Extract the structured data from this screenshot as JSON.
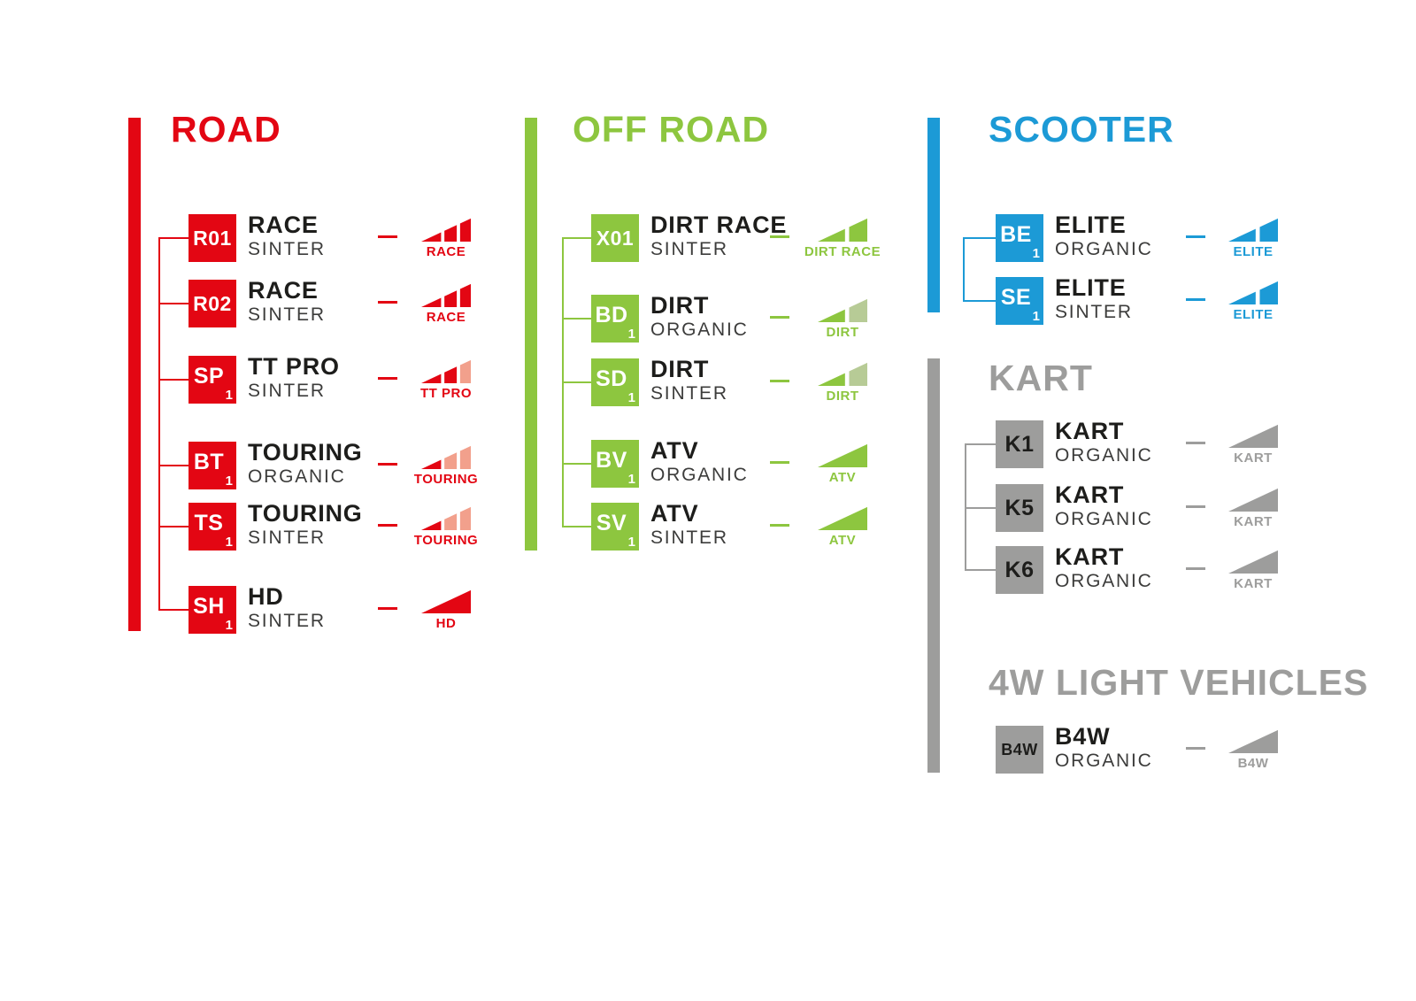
{
  "palette": {
    "road_red": "#E30613",
    "road_salmon": "#F2A08C",
    "offroad_green": "#8DC63F",
    "offroad_sage": "#B7CB96",
    "scooter_blue": "#1C9AD6",
    "neutral_gray": "#9D9D9C",
    "text_dark": "#1D1D1B"
  },
  "sections": [
    {
      "id": "road",
      "title": "ROAD",
      "accent": "#E30613",
      "box_bg": "#E30613",
      "box_text": "#FFFFFF",
      "items": [
        {
          "code": "R01",
          "sub": "",
          "name": "RACE",
          "compound": "SINTER",
          "icon": {
            "type": "bars3",
            "label": "RACE",
            "colors": [
              "#E30613",
              "#E30613",
              "#E30613"
            ]
          }
        },
        {
          "code": "R02",
          "sub": "",
          "name": "RACE",
          "compound": "SINTER",
          "icon": {
            "type": "bars3",
            "label": "RACE",
            "colors": [
              "#E30613",
              "#E30613",
              "#E30613"
            ]
          }
        },
        {
          "code": "SP",
          "sub": "1",
          "name": "TT PRO",
          "compound": "SINTER",
          "icon": {
            "type": "bars3",
            "label": "TT PRO",
            "colors": [
              "#E30613",
              "#E30613",
              "#F2A08C"
            ]
          }
        },
        {
          "code": "BT",
          "sub": "1",
          "name": "TOURING",
          "compound": "ORGANIC",
          "icon": {
            "type": "bars3",
            "label": "TOURING",
            "colors": [
              "#E30613",
              "#F2A08C",
              "#F2A08C"
            ]
          }
        },
        {
          "code": "TS",
          "sub": "1",
          "name": "TOURING",
          "compound": "SINTER",
          "icon": {
            "type": "bars3",
            "label": "TOURING",
            "colors": [
              "#E30613",
              "#F2A08C",
              "#F2A08C"
            ]
          }
        },
        {
          "code": "SH",
          "sub": "1",
          "name": "HD",
          "compound": "SINTER",
          "icon": {
            "type": "ramp",
            "label": "HD",
            "colors": [
              "#E30613"
            ]
          }
        }
      ]
    },
    {
      "id": "off-road",
      "title": "OFF ROAD",
      "accent": "#8DC63F",
      "box_bg": "#8DC63F",
      "box_text": "#FFFFFF",
      "items": [
        {
          "code": "X01",
          "sub": "",
          "name": "DIRT RACE",
          "compound": "SINTER",
          "icon": {
            "type": "bars2",
            "label": "DIRT RACE",
            "colors": [
              "#8DC63F",
              "#8DC63F"
            ]
          }
        },
        {
          "code": "BD",
          "sub": "1",
          "name": "DIRT",
          "compound": "ORGANIC",
          "icon": {
            "type": "bars2",
            "label": "DIRT",
            "colors": [
              "#8DC63F",
              "#B7CB96"
            ]
          }
        },
        {
          "code": "SD",
          "sub": "1",
          "name": "DIRT",
          "compound": "SINTER",
          "icon": {
            "type": "bars2",
            "label": "DIRT",
            "colors": [
              "#8DC63F",
              "#B7CB96"
            ]
          }
        },
        {
          "code": "BV",
          "sub": "1",
          "name": "ATV",
          "compound": "ORGANIC",
          "icon": {
            "type": "ramp",
            "label": "ATV",
            "colors": [
              "#8DC63F"
            ]
          }
        },
        {
          "code": "SV",
          "sub": "1",
          "name": "ATV",
          "compound": "SINTER",
          "icon": {
            "type": "ramp",
            "label": "ATV",
            "colors": [
              "#8DC63F"
            ]
          }
        }
      ]
    },
    {
      "id": "scooter",
      "title": "SCOOTER",
      "accent": "#1C9AD6",
      "box_bg": "#1C9AD6",
      "box_text": "#FFFFFF",
      "items": [
        {
          "code": "BE",
          "sub": "1",
          "name": "ELITE",
          "compound": "ORGANIC",
          "icon": {
            "type": "bars2",
            "label": "ELITE",
            "colors": [
              "#1C9AD6",
              "#1C9AD6"
            ]
          }
        },
        {
          "code": "SE",
          "sub": "1",
          "name": "ELITE",
          "compound": "SINTER",
          "icon": {
            "type": "bars2",
            "label": "ELITE",
            "colors": [
              "#1C9AD6",
              "#1C9AD6"
            ]
          }
        }
      ]
    },
    {
      "id": "kart",
      "title": "KART",
      "accent": "#9D9D9C",
      "box_bg": "#9D9D9C",
      "box_text": "#1D1D1B",
      "items": [
        {
          "code": "K1",
          "sub": "",
          "name": "KART",
          "compound": "ORGANIC",
          "icon": {
            "type": "ramp",
            "label": "KART",
            "colors": [
              "#9D9D9C"
            ]
          }
        },
        {
          "code": "K5",
          "sub": "",
          "name": "KART",
          "compound": "ORGANIC",
          "icon": {
            "type": "ramp",
            "label": "KART",
            "colors": [
              "#9D9D9C"
            ]
          }
        },
        {
          "code": "K6",
          "sub": "",
          "name": "KART",
          "compound": "ORGANIC",
          "icon": {
            "type": "ramp",
            "label": "KART",
            "colors": [
              "#9D9D9C"
            ]
          }
        }
      ]
    },
    {
      "id": "4w",
      "title": "4W LIGHT VEHICLES",
      "accent": "#9D9D9C",
      "box_bg": "#9D9D9C",
      "box_text": "#1D1D1B",
      "items": [
        {
          "code": "B4W",
          "sub": "",
          "name": "B4W",
          "compound": "ORGANIC",
          "icon": {
            "type": "ramp",
            "label": "B4W",
            "colors": [
              "#9D9D9C"
            ]
          }
        }
      ]
    }
  ]
}
